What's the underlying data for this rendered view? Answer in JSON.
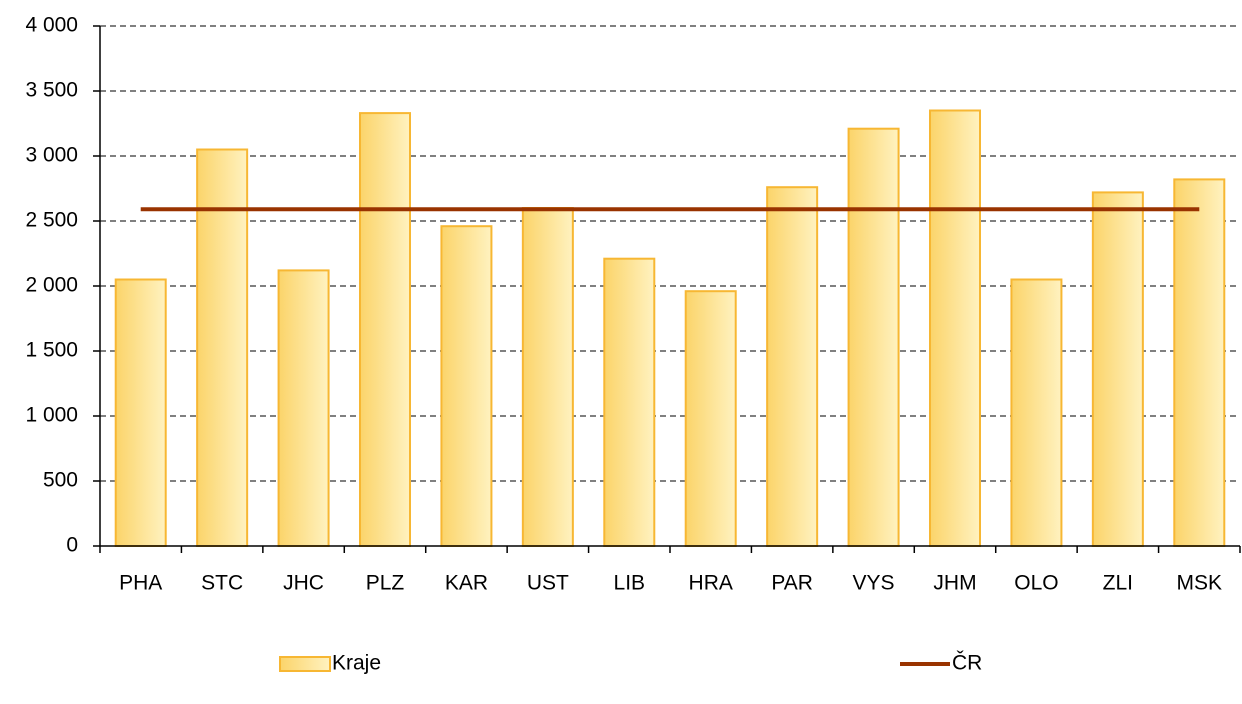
{
  "chart_data": {
    "type": "bar",
    "categories": [
      "PHA",
      "STC",
      "JHC",
      "PLZ",
      "KAR",
      "UST",
      "LIB",
      "HRA",
      "PAR",
      "VYS",
      "JHM",
      "OLO",
      "ZLI",
      "MSK"
    ],
    "series": [
      {
        "name": "Kraje",
        "color": "#f7b733",
        "values": [
          2050,
          3050,
          2120,
          3330,
          2460,
          2600,
          2210,
          1960,
          2760,
          3210,
          3350,
          2050,
          2720,
          2820
        ]
      },
      {
        "name": "ČR",
        "type": "line",
        "color": "#993300",
        "values": [
          2590,
          2590,
          2590,
          2590,
          2590,
          2590,
          2590,
          2590,
          2590,
          2590,
          2590,
          2590,
          2590,
          2590
        ]
      }
    ],
    "ylim": [
      0,
      4000
    ],
    "yticks": [
      0,
      500,
      {
        "value": 1000,
        "label": "1 000"
      },
      {
        "value": 1500,
        "label": "1 500"
      },
      {
        "value": 2000,
        "label": "2 000"
      },
      {
        "value": 2500,
        "label": "2 500"
      },
      {
        "value": 3000,
        "label": "3 000"
      },
      {
        "value": 3500,
        "label": "3 500"
      },
      {
        "value": 4000,
        "label": "4 000"
      }
    ],
    "grid": true,
    "legend": "bottom"
  }
}
